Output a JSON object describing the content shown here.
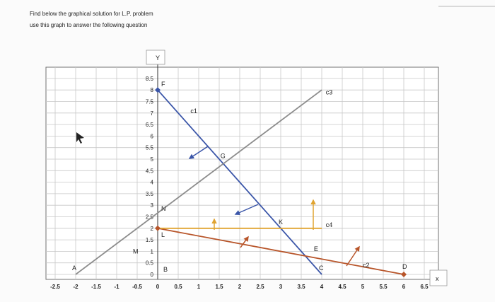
{
  "question": {
    "line1": "Find below the graphical solution for L.P. problem",
    "line2": "use this graph to answer the following question"
  },
  "chart_data": {
    "type": "line",
    "xlabel": "x",
    "ylabel": "Y",
    "xlim": [
      -2.5,
      6.5
    ],
    "ylim": [
      0,
      8.5
    ],
    "grid": true,
    "x_ticks": [
      "-2.5",
      "-2",
      "-1.5",
      "-1",
      "-0.5",
      "0",
      "0.5",
      "1",
      "1.5",
      "2",
      "2.5",
      "3",
      "3.5",
      "4",
      "4.5",
      "5",
      "5.5",
      "6",
      "6.5"
    ],
    "y_ticks": [
      "0",
      "0.5",
      "1",
      "1.5",
      "2",
      "2.5",
      "3",
      "3.5",
      "4",
      "4.5",
      "5",
      "5.5",
      "6",
      "6.5",
      "7",
      "7.5",
      "8",
      "8.5"
    ],
    "series": [
      {
        "name": "c1",
        "color": "#3a55a8",
        "x": [
          0,
          4
        ],
        "y": [
          8,
          0
        ]
      },
      {
        "name": "c2",
        "color": "#b8552a",
        "x": [
          0,
          6
        ],
        "y": [
          2,
          0
        ]
      },
      {
        "name": "c3",
        "color": "#8c8c8c",
        "x": [
          -2,
          4
        ],
        "y": [
          0,
          8
        ]
      },
      {
        "name": "c4",
        "color": "#e0a431",
        "x": [
          0,
          4
        ],
        "y": [
          2,
          2
        ]
      }
    ],
    "points": [
      {
        "label": "A",
        "x": -2,
        "y": 0
      },
      {
        "label": "B",
        "x": 0,
        "y": 0
      },
      {
        "label": "C",
        "x": 4,
        "y": 0
      },
      {
        "label": "D",
        "x": 6,
        "y": 0
      },
      {
        "label": "E",
        "x": 3.86,
        "y": 0.71
      },
      {
        "label": "F",
        "x": 0,
        "y": 8
      },
      {
        "label": "G",
        "x": 1.6,
        "y": 4.8
      },
      {
        "label": "K",
        "x": 3,
        "y": 2
      },
      {
        "label": "L",
        "x": 0,
        "y": 2
      },
      {
        "label": "M",
        "x": -0.5,
        "y": 1
      },
      {
        "label": "N",
        "x": 0,
        "y": 2.67
      }
    ]
  }
}
